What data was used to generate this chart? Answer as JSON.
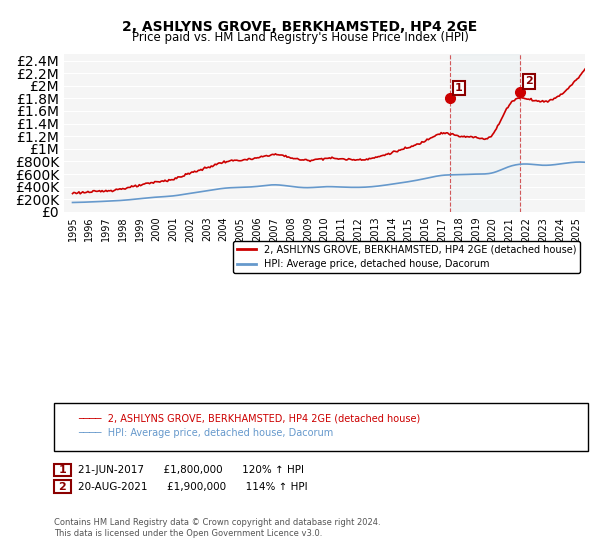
{
  "title": "2, ASHLYNS GROVE, BERKHAMSTED, HP4 2GE",
  "subtitle": "Price paid vs. HM Land Registry's House Price Index (HPI)",
  "ylabel": "",
  "ylim": [
    0,
    2500000
  ],
  "yticks": [
    0,
    200000,
    400000,
    600000,
    800000,
    1000000,
    1200000,
    1400000,
    1600000,
    1800000,
    2000000,
    2200000,
    2400000
  ],
  "ytick_labels": [
    "£0",
    "£200K",
    "£400K",
    "£600K",
    "£800K",
    "£1M",
    "£1.2M",
    "£1.4M",
    "£1.6M",
    "£1.8M",
    "£2M",
    "£2.2M",
    "£2.4M"
  ],
  "red_color": "#cc0000",
  "blue_color": "#6699cc",
  "background_color": "#ffffff",
  "plot_bg_color": "#f5f5f5",
  "sale1_date": 2017.47,
  "sale1_price": 1800000,
  "sale1_label": "1",
  "sale2_date": 2021.63,
  "sale2_price": 1900000,
  "sale2_label": "2",
  "legend_line1": "2, ASHLYNS GROVE, BERKHAMSTED, HP4 2GE (detached house)",
  "legend_line2": "HPI: Average price, detached house, Dacorum",
  "annotation1": "1   21-JUN-2017      £1,800,000      120% ↑ HPI",
  "annotation2": "2   20-AUG-2021      £1,900,000      114% ↑ HPI",
  "footnote": "Contains HM Land Registry data © Crown copyright and database right 2024.\nThis data is licensed under the Open Government Licence v3.0.",
  "xlim_start": 1994.5,
  "xlim_end": 2025.5
}
